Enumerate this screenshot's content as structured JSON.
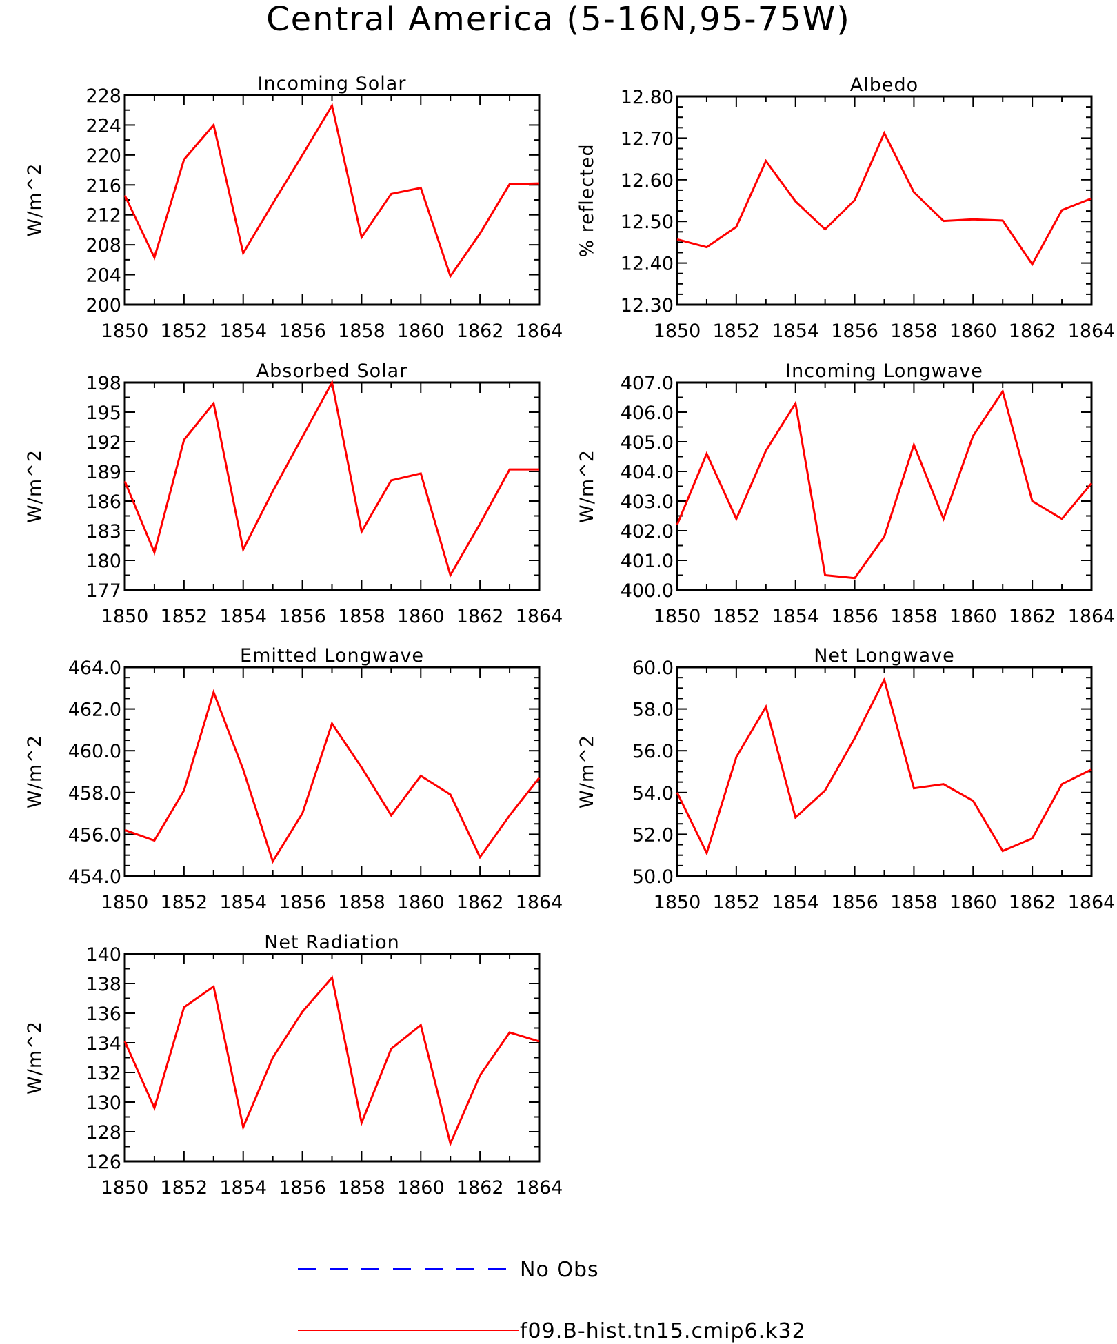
{
  "title": "Central America (5-16N,95-75W)",
  "legend": [
    {
      "label": "No Obs",
      "color": "#0000ff",
      "dash": true
    },
    {
      "label": "f09.B-hist.tn15.cmip6.k32",
      "color": "#ff0000",
      "dash": false
    }
  ],
  "chart_data": [
    {
      "type": "line",
      "title": "Incoming Solar",
      "ylabel": "W/m^2",
      "x": [
        1850,
        1851,
        1852,
        1853,
        1854,
        1855,
        1856,
        1857,
        1858,
        1859,
        1860,
        1861,
        1862,
        1863,
        1864
      ],
      "xticks": [
        1850,
        1852,
        1854,
        1856,
        1858,
        1860,
        1862,
        1864
      ],
      "ylim": [
        200,
        228
      ],
      "yticks": [
        "200",
        "204",
        "208",
        "212",
        "216",
        "220",
        "224",
        "228"
      ],
      "yminor_step": 2,
      "series": [
        {
          "values": [
            214.6,
            206.3,
            219.4,
            224.0,
            206.9,
            213.5,
            220.0,
            226.6,
            209.0,
            214.8,
            215.6,
            203.8,
            209.5,
            216.1,
            216.2
          ],
          "color": "#ff0000"
        }
      ]
    },
    {
      "type": "line",
      "title": "Albedo",
      "ylabel": "% reflected",
      "x": [
        1850,
        1851,
        1852,
        1853,
        1854,
        1855,
        1856,
        1857,
        1858,
        1859,
        1860,
        1861,
        1862,
        1863,
        1864
      ],
      "xticks": [
        1850,
        1852,
        1854,
        1856,
        1858,
        1860,
        1862,
        1864
      ],
      "ylim": [
        12.3,
        12.8
      ],
      "yticks": [
        "12.30",
        "12.40",
        "12.50",
        "12.60",
        "12.70",
        "12.80"
      ],
      "yminor_step": 0.025,
      "series": [
        {
          "values": [
            12.457,
            12.438,
            12.487,
            12.645,
            12.548,
            12.481,
            12.551,
            12.712,
            12.57,
            12.501,
            12.505,
            12.502,
            12.397,
            12.527,
            12.555
          ],
          "color": "#ff0000"
        }
      ]
    },
    {
      "type": "line",
      "title": "Absorbed Solar",
      "ylabel": "W/m^2",
      "x": [
        1850,
        1851,
        1852,
        1853,
        1854,
        1855,
        1856,
        1857,
        1858,
        1859,
        1860,
        1861,
        1862,
        1863,
        1864
      ],
      "xticks": [
        1850,
        1852,
        1854,
        1856,
        1858,
        1860,
        1862,
        1864
      ],
      "ylim": [
        177,
        198
      ],
      "yticks": [
        "177",
        "180",
        "183",
        "186",
        "189",
        "192",
        "195",
        "198"
      ],
      "yminor_step": 1.5,
      "series": [
        {
          "values": [
            188.0,
            180.8,
            192.2,
            195.9,
            181.1,
            187.0,
            192.5,
            198.0,
            182.9,
            188.1,
            188.8,
            178.5,
            183.7,
            189.2,
            189.2
          ],
          "color": "#ff0000"
        }
      ]
    },
    {
      "type": "line",
      "title": "Incoming Longwave",
      "ylabel": "W/m^2",
      "x": [
        1850,
        1851,
        1852,
        1853,
        1854,
        1855,
        1856,
        1857,
        1858,
        1859,
        1860,
        1861,
        1862,
        1863,
        1864
      ],
      "xticks": [
        1850,
        1852,
        1854,
        1856,
        1858,
        1860,
        1862,
        1864
      ],
      "ylim": [
        400,
        407
      ],
      "yticks": [
        "400.0",
        "401.0",
        "402.0",
        "403.0",
        "404.0",
        "405.0",
        "406.0",
        "407.0"
      ],
      "yminor_step": 0.5,
      "series": [
        {
          "values": [
            402.2,
            404.6,
            402.4,
            404.7,
            406.3,
            400.5,
            400.4,
            401.8,
            404.9,
            402.4,
            405.2,
            406.7,
            403.0,
            402.4,
            403.6
          ],
          "color": "#ff0000"
        }
      ]
    },
    {
      "type": "line",
      "title": "Emitted Longwave",
      "ylabel": "W/m^2",
      "x": [
        1850,
        1851,
        1852,
        1853,
        1854,
        1855,
        1856,
        1857,
        1858,
        1859,
        1860,
        1861,
        1862,
        1863,
        1864
      ],
      "xticks": [
        1850,
        1852,
        1854,
        1856,
        1858,
        1860,
        1862,
        1864
      ],
      "ylim": [
        454,
        464
      ],
      "yticks": [
        "454.0",
        "456.0",
        "458.0",
        "460.0",
        "462.0",
        "464.0"
      ],
      "yminor_step": 0.5,
      "series": [
        {
          "values": [
            456.2,
            455.7,
            458.1,
            462.8,
            459.1,
            454.7,
            457.0,
            461.3,
            459.2,
            456.9,
            458.8,
            457.9,
            454.9,
            456.9,
            458.7
          ],
          "color": "#ff0000"
        }
      ]
    },
    {
      "type": "line",
      "title": "Net Longwave",
      "ylabel": "W/m^2",
      "x": [
        1850,
        1851,
        1852,
        1853,
        1854,
        1855,
        1856,
        1857,
        1858,
        1859,
        1860,
        1861,
        1862,
        1863,
        1864
      ],
      "xticks": [
        1850,
        1852,
        1854,
        1856,
        1858,
        1860,
        1862,
        1864
      ],
      "ylim": [
        50,
        60
      ],
      "yticks": [
        "50.0",
        "52.0",
        "54.0",
        "56.0",
        "58.0",
        "60.0"
      ],
      "yminor_step": 0.5,
      "series": [
        {
          "values": [
            54.0,
            51.1,
            55.7,
            58.1,
            52.8,
            54.1,
            56.6,
            59.4,
            54.2,
            54.4,
            53.6,
            51.2,
            51.8,
            54.4,
            55.1
          ],
          "color": "#ff0000"
        }
      ]
    },
    {
      "type": "line",
      "title": "Net Radiation",
      "ylabel": "W/m^2",
      "x": [
        1850,
        1851,
        1852,
        1853,
        1854,
        1855,
        1856,
        1857,
        1858,
        1859,
        1860,
        1861,
        1862,
        1863,
        1864
      ],
      "xticks": [
        1850,
        1852,
        1854,
        1856,
        1858,
        1860,
        1862,
        1864
      ],
      "ylim": [
        126,
        140
      ],
      "yticks": [
        "126",
        "128",
        "130",
        "132",
        "134",
        "136",
        "138",
        "140"
      ],
      "yminor_step": 1,
      "series": [
        {
          "values": [
            134.1,
            129.6,
            136.4,
            137.8,
            128.3,
            133.0,
            136.1,
            138.4,
            128.6,
            133.6,
            135.2,
            127.2,
            131.8,
            134.7,
            134.1
          ],
          "color": "#ff0000"
        }
      ]
    }
  ]
}
